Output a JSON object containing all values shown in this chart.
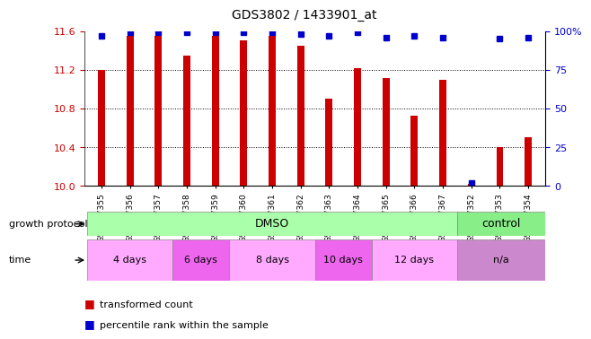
{
  "title": "GDS3802 / 1433901_at",
  "samples": [
    "GSM447355",
    "GSM447356",
    "GSM447357",
    "GSM447358",
    "GSM447359",
    "GSM447360",
    "GSM447361",
    "GSM447362",
    "GSM447363",
    "GSM447364",
    "GSM447365",
    "GSM447366",
    "GSM447367",
    "GSM447352",
    "GSM447353",
    "GSM447354"
  ],
  "transformed_count": [
    11.2,
    11.55,
    11.55,
    11.35,
    11.55,
    11.5,
    11.55,
    11.45,
    10.9,
    11.22,
    11.12,
    10.73,
    11.1,
    10.02,
    10.4,
    10.5
  ],
  "percentile_rank": [
    97,
    99,
    99,
    99,
    99,
    99,
    99,
    98,
    97,
    99,
    96,
    97,
    96,
    2,
    95,
    96
  ],
  "ylim_left": [
    10.0,
    11.6
  ],
  "ylim_right": [
    0,
    100
  ],
  "yticks_left": [
    10.0,
    10.4,
    10.8,
    11.2,
    11.6
  ],
  "yticks_right": [
    0,
    25,
    50,
    75,
    100
  ],
  "bar_color": "#CC0000",
  "dot_color": "#0000CC",
  "growth_protocol_groups": [
    {
      "label": "DMSO",
      "start": 0,
      "end": 12,
      "color": "#AAFFAA"
    },
    {
      "label": "control",
      "start": 13,
      "end": 16,
      "color": "#88EE88"
    }
  ],
  "time_groups": [
    {
      "label": "4 days",
      "start": 0,
      "end": 2,
      "color": "#FFAAFF"
    },
    {
      "label": "6 days",
      "start": 2,
      "end": 4,
      "color": "#EE88EE"
    },
    {
      "label": "8 days",
      "start": 4,
      "end": 7,
      "color": "#FFAAFF"
    },
    {
      "label": "10 days",
      "start": 7,
      "end": 9,
      "color": "#EE88EE"
    },
    {
      "label": "12 days",
      "start": 9,
      "end": 12,
      "color": "#FFAAFF"
    },
    {
      "label": "n/a",
      "start": 13,
      "end": 16,
      "color": "#CC88CC"
    }
  ],
  "protocol_label": "growth protocol",
  "time_label": "time",
  "legend_red": "transformed count",
  "legend_blue": "percentile rank within the sample",
  "tick_label_color_left": "#CC0000",
  "tick_label_color_right": "#0000CC"
}
